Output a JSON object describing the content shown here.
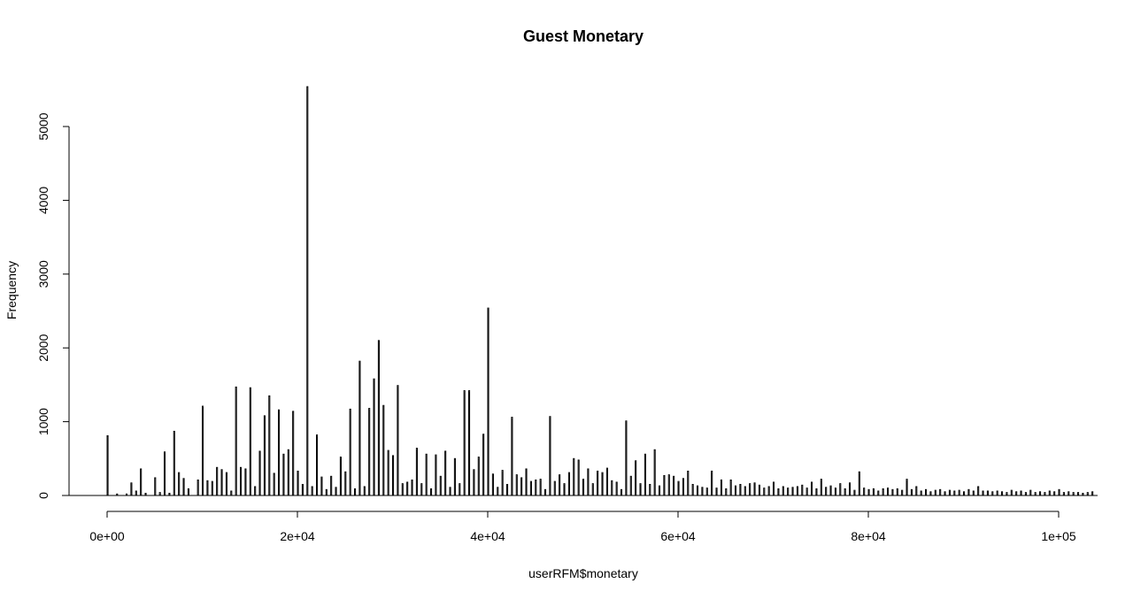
{
  "chart_data": {
    "type": "bar",
    "title": "Guest Monetary",
    "xlabel": "userRFM$monetary",
    "ylabel": "Frequency",
    "xlim": [
      0,
      104000
    ],
    "ylim": [
      0,
      5500
    ],
    "grid": false,
    "legend": "none",
    "x_ticks": [
      0,
      20000,
      40000,
      60000,
      80000,
      100000
    ],
    "x_tick_labels": [
      "0e+00",
      "2e+04",
      "4e+04",
      "6e+04",
      "8e+04",
      "1e+05"
    ],
    "y_ticks": [
      0,
      1000,
      2000,
      3000,
      4000,
      5000
    ],
    "y_tick_labels": [
      "0",
      "1000",
      "2000",
      "3000",
      "4000",
      "5000"
    ],
    "bin_width": 100,
    "bar_color": "#000000",
    "bins": [
      [
        0,
        810
      ],
      [
        1000,
        20
      ],
      [
        2000,
        20
      ],
      [
        2500,
        170
      ],
      [
        3000,
        60
      ],
      [
        3500,
        360
      ],
      [
        4000,
        30
      ],
      [
        5000,
        240
      ],
      [
        5500,
        40
      ],
      [
        6000,
        590
      ],
      [
        6500,
        30
      ],
      [
        7000,
        870
      ],
      [
        7500,
        310
      ],
      [
        8000,
        230
      ],
      [
        8500,
        90
      ],
      [
        9500,
        210
      ],
      [
        10000,
        1210
      ],
      [
        10500,
        200
      ],
      [
        11000,
        190
      ],
      [
        11500,
        380
      ],
      [
        12000,
        350
      ],
      [
        12500,
        310
      ],
      [
        13000,
        60
      ],
      [
        13500,
        1470
      ],
      [
        14000,
        380
      ],
      [
        14500,
        360
      ],
      [
        15000,
        1460
      ],
      [
        15500,
        120
      ],
      [
        16000,
        600
      ],
      [
        16500,
        1080
      ],
      [
        17000,
        1350
      ],
      [
        17500,
        300
      ],
      [
        18000,
        1160
      ],
      [
        18500,
        560
      ],
      [
        19000,
        620
      ],
      [
        19500,
        1140
      ],
      [
        20000,
        330
      ],
      [
        20500,
        150
      ],
      [
        21000,
        5540
      ],
      [
        21500,
        120
      ],
      [
        22000,
        820
      ],
      [
        22500,
        250
      ],
      [
        23000,
        80
      ],
      [
        23500,
        260
      ],
      [
        24000,
        110
      ],
      [
        24500,
        520
      ],
      [
        25000,
        320
      ],
      [
        25500,
        1170
      ],
      [
        26000,
        90
      ],
      [
        26500,
        1820
      ],
      [
        27000,
        120
      ],
      [
        27500,
        1180
      ],
      [
        28000,
        1580
      ],
      [
        28500,
        2100
      ],
      [
        29000,
        1220
      ],
      [
        29500,
        610
      ],
      [
        30000,
        540
      ],
      [
        30500,
        1490
      ],
      [
        31000,
        160
      ],
      [
        31500,
        180
      ],
      [
        32000,
        210
      ],
      [
        32500,
        640
      ],
      [
        33000,
        160
      ],
      [
        33500,
        560
      ],
      [
        34000,
        90
      ],
      [
        34500,
        550
      ],
      [
        35000,
        260
      ],
      [
        35500,
        600
      ],
      [
        36000,
        110
      ],
      [
        36500,
        500
      ],
      [
        37000,
        160
      ],
      [
        37500,
        1420
      ],
      [
        38000,
        1420
      ],
      [
        38500,
        350
      ],
      [
        39000,
        520
      ],
      [
        39500,
        830
      ],
      [
        40000,
        2540
      ],
      [
        40500,
        290
      ],
      [
        41000,
        110
      ],
      [
        41500,
        340
      ],
      [
        42000,
        150
      ],
      [
        42500,
        1060
      ],
      [
        43000,
        280
      ],
      [
        43500,
        240
      ],
      [
        44000,
        360
      ],
      [
        44500,
        190
      ],
      [
        45000,
        210
      ],
      [
        45500,
        220
      ],
      [
        46000,
        80
      ],
      [
        46500,
        1070
      ],
      [
        47000,
        190
      ],
      [
        47500,
        280
      ],
      [
        48000,
        160
      ],
      [
        48500,
        310
      ],
      [
        49000,
        500
      ],
      [
        49500,
        480
      ],
      [
        50000,
        220
      ],
      [
        50500,
        360
      ],
      [
        51000,
        160
      ],
      [
        51500,
        330
      ],
      [
        52000,
        310
      ],
      [
        52500,
        370
      ],
      [
        53000,
        200
      ],
      [
        53500,
        180
      ],
      [
        54000,
        80
      ],
      [
        54500,
        1010
      ],
      [
        55000,
        260
      ],
      [
        55500,
        470
      ],
      [
        56000,
        160
      ],
      [
        56500,
        560
      ],
      [
        57000,
        150
      ],
      [
        57500,
        620
      ],
      [
        58000,
        130
      ],
      [
        58500,
        270
      ],
      [
        59000,
        280
      ],
      [
        59500,
        260
      ],
      [
        60000,
        190
      ],
      [
        60500,
        230
      ],
      [
        61000,
        330
      ],
      [
        61500,
        150
      ],
      [
        62000,
        130
      ],
      [
        62500,
        110
      ],
      [
        63000,
        100
      ],
      [
        63500,
        330
      ],
      [
        64000,
        100
      ],
      [
        64500,
        210
      ],
      [
        65000,
        90
      ],
      [
        65500,
        210
      ],
      [
        66000,
        130
      ],
      [
        66500,
        150
      ],
      [
        67000,
        120
      ],
      [
        67500,
        160
      ],
      [
        68000,
        170
      ],
      [
        68500,
        140
      ],
      [
        69000,
        100
      ],
      [
        69500,
        120
      ],
      [
        70000,
        180
      ],
      [
        70500,
        90
      ],
      [
        71000,
        120
      ],
      [
        71500,
        100
      ],
      [
        72000,
        110
      ],
      [
        72500,
        120
      ],
      [
        73000,
        140
      ],
      [
        73500,
        100
      ],
      [
        74000,
        180
      ],
      [
        74500,
        90
      ],
      [
        75000,
        220
      ],
      [
        75500,
        110
      ],
      [
        76000,
        130
      ],
      [
        76500,
        100
      ],
      [
        77000,
        160
      ],
      [
        77500,
        90
      ],
      [
        78000,
        170
      ],
      [
        78500,
        70
      ],
      [
        79000,
        320
      ],
      [
        79500,
        100
      ],
      [
        80000,
        80
      ],
      [
        80500,
        90
      ],
      [
        81000,
        60
      ],
      [
        81500,
        90
      ],
      [
        82000,
        100
      ],
      [
        82500,
        80
      ],
      [
        83000,
        90
      ],
      [
        83500,
        70
      ],
      [
        84000,
        220
      ],
      [
        84500,
        80
      ],
      [
        85000,
        120
      ],
      [
        85500,
        60
      ],
      [
        86000,
        80
      ],
      [
        86500,
        50
      ],
      [
        87000,
        70
      ],
      [
        87500,
        80
      ],
      [
        88000,
        50
      ],
      [
        88500,
        70
      ],
      [
        89000,
        60
      ],
      [
        89500,
        70
      ],
      [
        90000,
        50
      ],
      [
        90500,
        80
      ],
      [
        91000,
        60
      ],
      [
        91500,
        120
      ],
      [
        92000,
        60
      ],
      [
        92500,
        60
      ],
      [
        93000,
        50
      ],
      [
        93500,
        60
      ],
      [
        94000,
        50
      ],
      [
        94500,
        40
      ],
      [
        95000,
        70
      ],
      [
        95500,
        50
      ],
      [
        96000,
        60
      ],
      [
        96500,
        40
      ],
      [
        97000,
        70
      ],
      [
        97500,
        40
      ],
      [
        98000,
        50
      ],
      [
        98500,
        40
      ],
      [
        99000,
        60
      ],
      [
        99500,
        50
      ],
      [
        100000,
        80
      ],
      [
        100500,
        40
      ],
      [
        101000,
        50
      ],
      [
        101500,
        40
      ],
      [
        102000,
        40
      ],
      [
        102500,
        30
      ],
      [
        103000,
        40
      ],
      [
        103500,
        50
      ]
    ]
  }
}
